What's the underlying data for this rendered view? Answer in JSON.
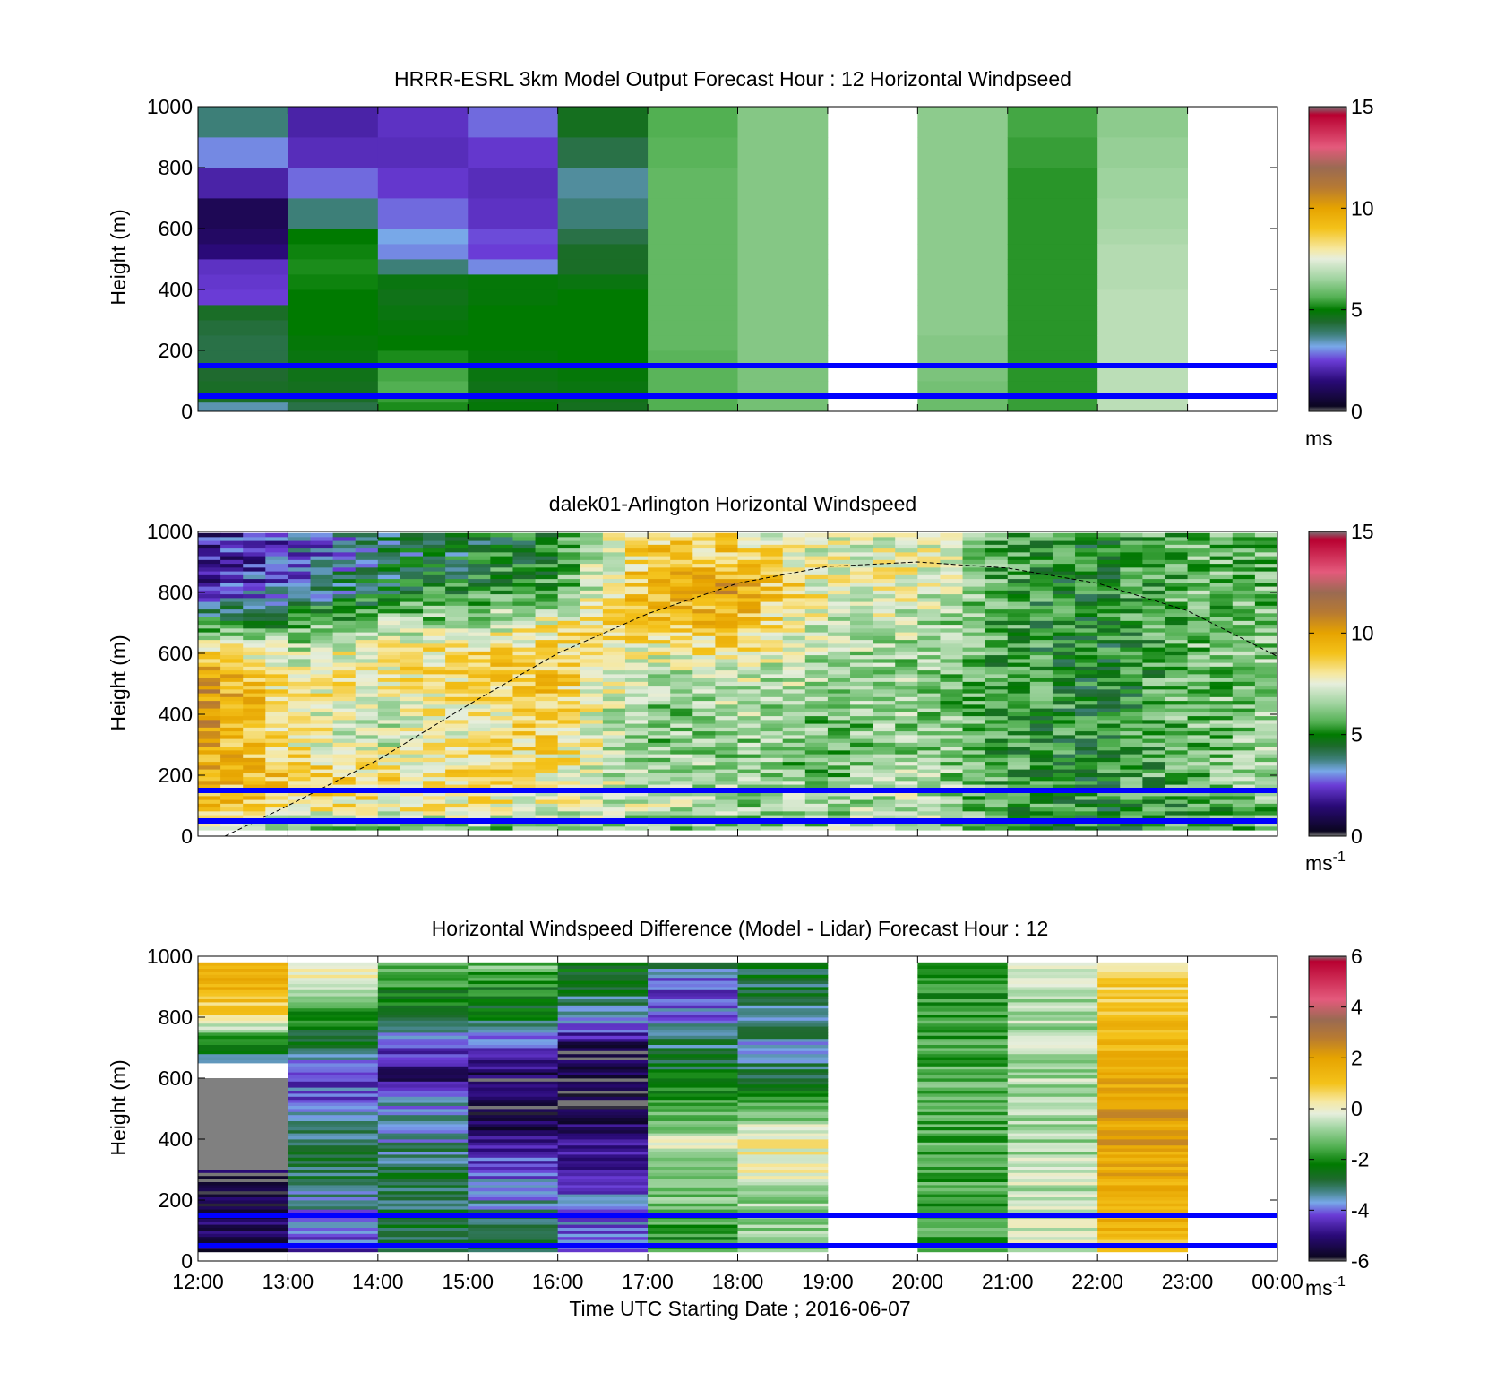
{
  "colors": {
    "ref_line": "#0000ff",
    "axis": "#000000",
    "background": "#ffffff"
  },
  "chart_data": [
    {
      "type": "heatmap",
      "title": "HRRR-ESRL 3km Model Output   Forecast Hour : 12 Horizontal Windpseed",
      "xlabel": "",
      "ylabel": "Height (m)",
      "ylim": [
        0,
        1000
      ],
      "yticks": [
        0,
        200,
        400,
        600,
        800,
        1000
      ],
      "x_hours": [
        12,
        13,
        14,
        15,
        16,
        17,
        18,
        19,
        20,
        21,
        22,
        23,
        24
      ],
      "colorbar": {
        "min": 0,
        "max": 15,
        "ticks": [
          "0",
          "5",
          "10",
          "15"
        ],
        "label": "ms",
        "label_sup": "",
        "scale": "speed"
      },
      "reference_lines_m": [
        150,
        50
      ],
      "value_grid": {
        "heights_m": [
          0,
          30,
          60,
          100,
          150,
          200,
          250,
          300,
          350,
          400,
          450,
          500,
          550,
          600,
          700,
          800,
          900,
          1000
        ],
        "columns": [
          [
            3.5,
            4.5,
            4.5,
            4.4,
            4.2,
            4.2,
            4.3,
            4.5,
            2.5,
            2.4,
            2.3,
            1.5,
            1.2,
            1.0,
            2.0,
            3.0,
            3.8
          ],
          [
            4.2,
            4.5,
            4.6,
            4.7,
            4.8,
            4.9,
            5.0,
            5.0,
            5.0,
            5.1,
            5.2,
            5.1,
            5.0,
            3.8,
            2.8,
            2.2,
            2.0
          ],
          [
            5.2,
            5.4,
            5.6,
            5.5,
            5.2,
            5.0,
            4.9,
            4.8,
            4.7,
            4.8,
            3.8,
            3.0,
            3.2,
            2.8,
            2.4,
            2.2,
            2.3
          ],
          [
            4.9,
            4.8,
            4.7,
            4.8,
            4.9,
            5.0,
            5.0,
            5.0,
            4.9,
            4.9,
            3.0,
            2.5,
            2.6,
            2.3,
            2.2,
            2.4,
            2.8
          ],
          [
            4.6,
            4.7,
            4.8,
            4.9,
            5.0,
            5.0,
            5.0,
            5.0,
            5.0,
            4.8,
            4.5,
            4.5,
            4.2,
            3.8,
            3.6,
            4.2,
            4.6
          ],
          [
            5.6,
            5.6,
            5.7,
            5.7,
            5.7,
            5.8,
            5.8,
            5.8,
            5.8,
            5.8,
            5.8,
            5.8,
            5.8,
            5.8,
            5.8,
            5.7,
            5.6
          ],
          [
            6.0,
            6.0,
            6.1,
            6.1,
            6.2,
            6.2,
            6.2,
            6.2,
            6.2,
            6.2,
            6.2,
            6.2,
            6.2,
            6.2,
            6.2,
            6.2,
            6.2
          ],
          null,
          [
            5.9,
            5.9,
            6.0,
            6.1,
            6.2,
            6.2,
            6.3,
            6.3,
            6.3,
            6.3,
            6.3,
            6.3,
            6.3,
            6.3,
            6.3,
            6.3,
            6.3
          ],
          [
            5.4,
            5.4,
            5.3,
            5.3,
            5.3,
            5.3,
            5.3,
            5.3,
            5.3,
            5.3,
            5.3,
            5.3,
            5.3,
            5.3,
            5.3,
            5.4,
            5.5
          ],
          [
            6.9,
            6.9,
            6.9,
            6.9,
            6.9,
            6.9,
            6.9,
            6.9,
            6.9,
            6.8,
            6.8,
            6.8,
            6.7,
            6.6,
            6.5,
            6.4,
            6.3
          ],
          null
        ]
      }
    },
    {
      "type": "heatmap",
      "title": "dalek01-Arlington  Horizontal Windspeed",
      "xlabel": "",
      "ylabel": "Height (m)",
      "ylim": [
        0,
        1000
      ],
      "yticks": [
        0,
        200,
        400,
        600,
        800,
        1000
      ],
      "x_hours": [
        12,
        13,
        14,
        15,
        16,
        17,
        18,
        19,
        20,
        21,
        22,
        23,
        24
      ],
      "colorbar": {
        "min": 0,
        "max": 15,
        "ticks": [
          "0",
          "5",
          "10",
          "15"
        ],
        "label": "ms",
        "label_sup": "-1",
        "scale": "speed"
      },
      "reference_lines_m": [
        150,
        50
      ],
      "data_extent_hours": [
        12,
        23.95
      ],
      "profiles_per_hour": 4,
      "overlay_curve": {
        "points_hour_m": [
          [
            12.3,
            0
          ],
          [
            13,
            100
          ],
          [
            14,
            250
          ],
          [
            15,
            430
          ],
          [
            16,
            600
          ],
          [
            17,
            730
          ],
          [
            18,
            830
          ],
          [
            19,
            885
          ],
          [
            20,
            900
          ],
          [
            21,
            880
          ],
          [
            22,
            830
          ],
          [
            23,
            740
          ],
          [
            24,
            590
          ]
        ]
      },
      "value_profiles": {
        "hours": [
          12,
          13,
          14,
          15,
          16,
          17,
          18,
          19,
          20,
          21,
          22,
          23,
          24
        ],
        "heights_m": [
          0,
          100,
          200,
          300,
          400,
          500,
          600,
          700,
          800,
          900,
          1000
        ],
        "values": [
          [
            5.5,
            9.0,
            9.5,
            10.0,
            10.5,
            10.5,
            9.0,
            5.0,
            2.0,
            1.5,
            2.0
          ],
          [
            5.0,
            8.5,
            9.0,
            8.0,
            8.0,
            8.0,
            7.0,
            5.5,
            3.0,
            2.5,
            2.5
          ],
          [
            5.0,
            8.0,
            8.5,
            7.0,
            7.0,
            8.0,
            8.0,
            6.5,
            4.5,
            4.0,
            3.5
          ],
          [
            5.5,
            8.0,
            8.5,
            8.0,
            8.0,
            8.5,
            8.5,
            6.5,
            5.5,
            4.5,
            4.5
          ],
          [
            5.5,
            7.5,
            8.0,
            8.5,
            8.5,
            9.0,
            8.5,
            8.0,
            5.5,
            5.5,
            5.0
          ],
          [
            6.0,
            7.0,
            6.5,
            6.0,
            6.0,
            6.5,
            7.5,
            9.0,
            9.5,
            9.0,
            8.5
          ],
          [
            6.0,
            6.5,
            6.5,
            6.5,
            7.0,
            7.0,
            8.0,
            9.0,
            10.0,
            9.0,
            8.0
          ],
          [
            6.5,
            6.5,
            6.0,
            6.0,
            6.0,
            6.5,
            6.5,
            7.0,
            7.5,
            7.5,
            7.0
          ],
          [
            6.5,
            7.0,
            7.0,
            6.5,
            6.5,
            6.5,
            6.5,
            7.0,
            7.5,
            8.0,
            7.5
          ],
          [
            5.5,
            5.5,
            5.5,
            5.5,
            5.5,
            5.5,
            5.5,
            5.5,
            5.5,
            5.5,
            5.5
          ],
          [
            4.8,
            5.0,
            5.0,
            5.0,
            5.0,
            4.8,
            4.8,
            4.8,
            5.0,
            5.0,
            5.0
          ],
          [
            5.5,
            5.5,
            6.0,
            6.0,
            6.0,
            6.0,
            6.0,
            6.0,
            6.0,
            6.0,
            6.0
          ],
          [
            6.0,
            6.0,
            6.5,
            6.5,
            6.5,
            6.5,
            6.5,
            6.0,
            6.0,
            6.0,
            6.0
          ]
        ]
      }
    },
    {
      "type": "heatmap",
      "title": "Horizontal Windspeed Difference (Model - Lidar) Forecast Hour : 12",
      "xlabel": "Time UTC  Starting Date ; 2016-06-07",
      "ylabel": "Height (m)",
      "ylim": [
        0,
        1000
      ],
      "yticks": [
        0,
        200,
        400,
        600,
        800,
        1000
      ],
      "x_hours": [
        12,
        13,
        14,
        15,
        16,
        17,
        18,
        19,
        20,
        21,
        22,
        23,
        24
      ],
      "xtick_labels": [
        "12:00",
        "13:00",
        "14:00",
        "15:00",
        "16:00",
        "17:00",
        "18:00",
        "19:00",
        "20:00",
        "21:00",
        "22:00",
        "23:00",
        "00:00"
      ],
      "colorbar": {
        "min": -6,
        "max": 6,
        "ticks": [
          "-6",
          "-4",
          "-2",
          "0",
          "2",
          "4",
          "6"
        ],
        "label": "ms",
        "label_sup": "-1",
        "scale": "diff"
      },
      "reference_lines_m": [
        150,
        50
      ],
      "nodata_block": {
        "hours": [
          12,
          13
        ],
        "heights_m": [
          300,
          600
        ]
      },
      "value_profiles": [
        {
          "heights_m": [
            0,
            100,
            200,
            300,
            600,
            650,
            700,
            800,
            900,
            1000
          ],
          "values": [
            -5.2,
            -5.3,
            -5.4,
            -5.6,
            null,
            -3.5,
            -2.5,
            0.5,
            1.5,
            1.0
          ]
        },
        {
          "heights_m": [
            0,
            100,
            200,
            300,
            400,
            500,
            600,
            700,
            800,
            900,
            1000
          ],
          "values": [
            -4.5,
            -3.8,
            -3.5,
            -2.8,
            -3.2,
            -4.0,
            -4.2,
            -3.0,
            -2.0,
            0.0,
            0.5
          ]
        },
        {
          "heights_m": [
            0,
            100,
            200,
            300,
            400,
            500,
            600,
            700,
            800,
            900,
            1000
          ],
          "values": [
            -2.8,
            -2.8,
            -2.9,
            -2.9,
            -3.5,
            -3.5,
            -5.0,
            -4.5,
            -2.5,
            -2.0,
            -1.0
          ]
        },
        {
          "heights_m": [
            0,
            100,
            200,
            300,
            400,
            500,
            600,
            700,
            800,
            900,
            1000
          ],
          "values": [
            -2.6,
            -3.0,
            -3.5,
            -4.0,
            -5.0,
            -5.6,
            -5.4,
            -4.6,
            -2.5,
            -2.0,
            -1.0
          ]
        },
        {
          "heights_m": [
            0,
            100,
            200,
            300,
            400,
            500,
            600,
            700,
            800,
            900,
            1000
          ],
          "values": [
            -3.8,
            -4.0,
            -4.0,
            -4.5,
            -5.0,
            -5.6,
            -5.6,
            -5.5,
            -3.5,
            -2.8,
            -2.5
          ]
        },
        {
          "heights_m": [
            0,
            100,
            200,
            300,
            400,
            500,
            600,
            700,
            800,
            900,
            1000
          ],
          "values": [
            -2.0,
            -1.8,
            -1.2,
            -0.8,
            -0.5,
            -1.5,
            -2.5,
            -3.0,
            -3.8,
            -4.2,
            -2.5
          ]
        },
        {
          "heights_m": [
            0,
            100,
            200,
            300,
            400,
            500,
            600,
            700,
            800,
            900,
            1000
          ],
          "values": [
            -1.0,
            -1.0,
            -0.8,
            0.0,
            0.2,
            -1.5,
            -2.8,
            -3.5,
            -3.2,
            -2.9,
            -2.5
          ]
        },
        null,
        {
          "heights_m": [
            0,
            100,
            200,
            300,
            400,
            500,
            600,
            700,
            800,
            900,
            1000
          ],
          "values": [
            -1.8,
            -1.7,
            -1.7,
            -1.6,
            -1.5,
            -1.5,
            -1.5,
            -1.6,
            -1.8,
            -2.0,
            -1.8
          ]
        },
        {
          "heights_m": [
            0,
            100,
            200,
            300,
            400,
            500,
            600,
            700,
            800,
            900,
            1000
          ],
          "values": [
            -0.5,
            -0.5,
            -0.6,
            -0.6,
            -0.7,
            -0.7,
            -0.7,
            -0.6,
            -0.8,
            -0.8,
            -0.5
          ]
        },
        {
          "heights_m": [
            0,
            100,
            200,
            300,
            400,
            500,
            600,
            700,
            800,
            900,
            1000
          ],
          "values": [
            1.2,
            1.4,
            1.6,
            1.8,
            2.0,
            2.0,
            1.8,
            1.5,
            1.2,
            0.8,
            0.4
          ]
        },
        null
      ]
    }
  ]
}
